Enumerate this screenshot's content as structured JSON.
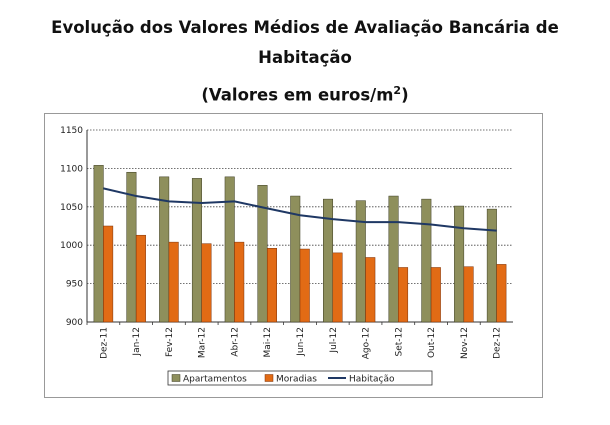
{
  "chart_data": {
    "type": "bar",
    "title_line1": "Evolução dos Valores Médios de Avaliação Bancária de",
    "title_line2": "Habitação",
    "subtitle_prefix": "(Valores em euros/m",
    "subtitle_sup": "2",
    "subtitle_suffix": ")",
    "categories": [
      "Dez-11",
      "Jan-12",
      "Fev-12",
      "Mar-12",
      "Abr-12",
      "Mai-12",
      "Jun-12",
      "Jul-12",
      "Ago-12",
      "Set-12",
      "Out-12",
      "Nov-12",
      "Dez-12"
    ],
    "series": [
      {
        "name": "Apartamentos",
        "kind": "bar",
        "color": "#8e8f5c",
        "values": [
          1104,
          1095,
          1089,
          1087,
          1089,
          1078,
          1064,
          1060,
          1058,
          1064,
          1060,
          1051,
          1047
        ]
      },
      {
        "name": "Moradias",
        "kind": "bar",
        "color": "#e26b15",
        "values": [
          1025,
          1013,
          1004,
          1002,
          1004,
          996,
          995,
          990,
          984,
          971,
          971,
          972,
          975
        ]
      },
      {
        "name": "Habitação",
        "kind": "line",
        "color": "#1f3864",
        "values": [
          1074,
          1064,
          1057,
          1055,
          1057,
          1048,
          1039,
          1034,
          1030,
          1030,
          1027,
          1022,
          1019
        ]
      }
    ],
    "yticks": [
      900,
      950,
      1000,
      1050,
      1100,
      1150
    ],
    "ylim": [
      900,
      1150
    ],
    "grid": true,
    "legend": "bottom"
  }
}
